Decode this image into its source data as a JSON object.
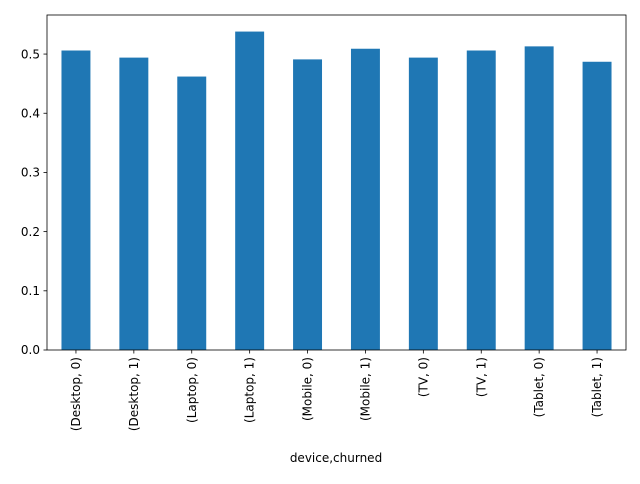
{
  "chart_data": {
    "type": "bar",
    "title": "",
    "xlabel": "device,churned",
    "ylabel": "",
    "categories": [
      "(Desktop, 0)",
      "(Desktop, 1)",
      "(Laptop, 0)",
      "(Laptop, 1)",
      "(Mobile, 0)",
      "(Mobile, 1)",
      "(TV, 0)",
      "(TV, 1)",
      "(Tablet, 0)",
      "(Tablet, 1)"
    ],
    "values": [
      0.506,
      0.494,
      0.462,
      0.538,
      0.491,
      0.509,
      0.494,
      0.506,
      0.513,
      0.487
    ],
    "ylim": [
      0,
      0.566
    ],
    "yticks": [
      0.0,
      0.1,
      0.2,
      0.3,
      0.4,
      0.5
    ],
    "ytick_labels": [
      "0.0",
      "0.1",
      "0.2",
      "0.3",
      "0.4",
      "0.5"
    ],
    "grid": false,
    "legend": "none",
    "bar_color": "#1f77b4"
  }
}
